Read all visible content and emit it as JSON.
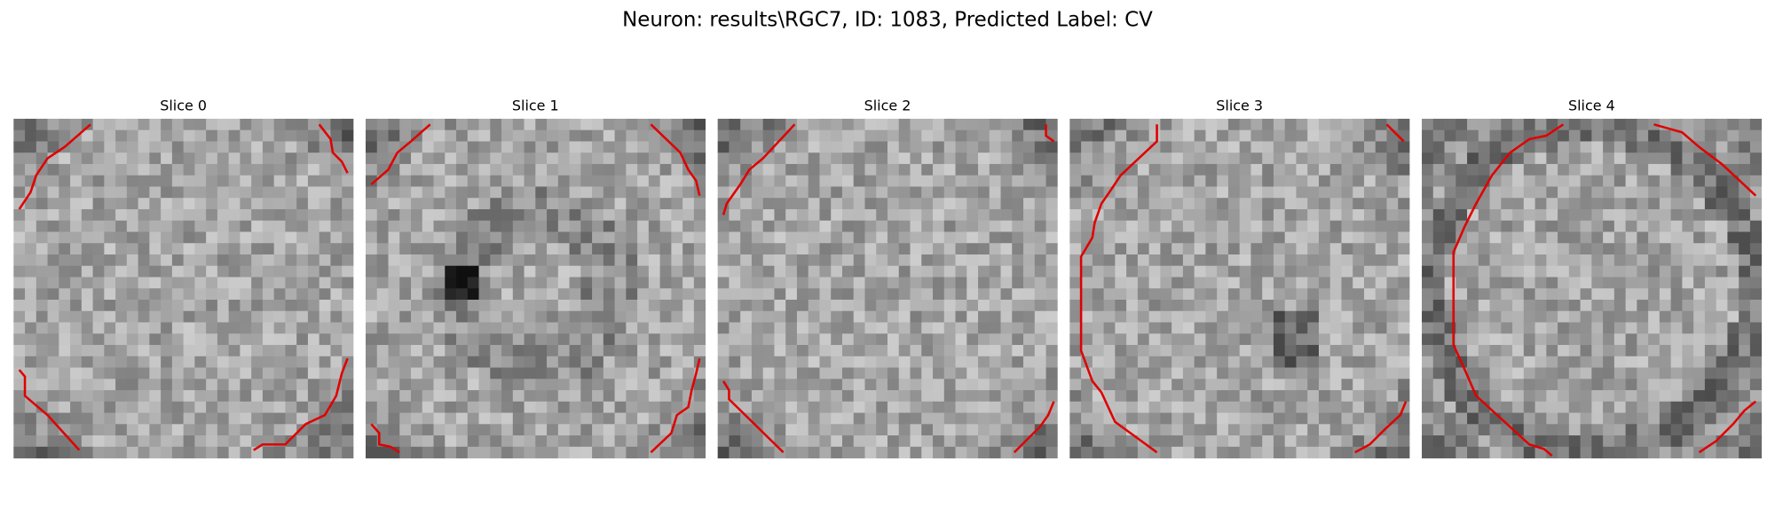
{
  "figure": {
    "title": "Neuron: results\\RGC7, ID: 1083, Predicted Label: CV",
    "panels": [
      {
        "title": "Slice 0"
      },
      {
        "title": "Slice 1"
      },
      {
        "title": "Slice 2"
      },
      {
        "title": "Slice 3"
      },
      {
        "title": "Slice 4"
      }
    ]
  }
}
